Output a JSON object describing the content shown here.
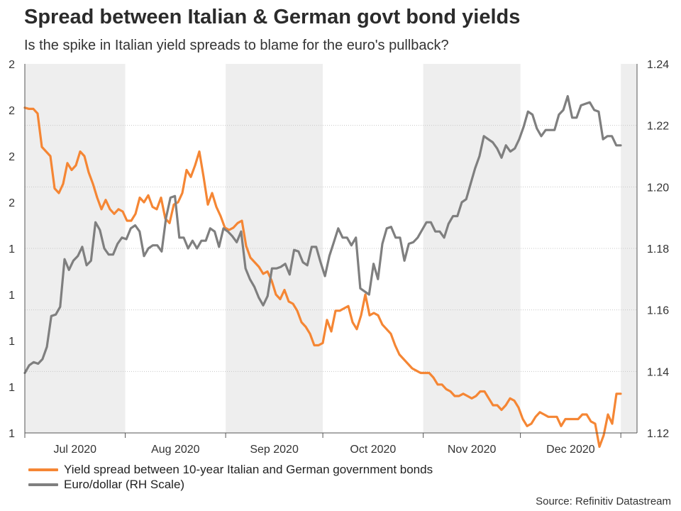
{
  "chart_data": {
    "type": "line",
    "title": "Spread between Italian & German govt bond yields",
    "subtitle": "Is the spike in Italian yield spreads to blame for the euro's pullback?",
    "source": "Source: Refinitiv Datastream",
    "x_labels": [
      "Jul 2020",
      "Aug 2020",
      "Sep 2020",
      "Oct 2020",
      "Nov 2020",
      "Dec 2020"
    ],
    "y_left_ticks": [
      "2",
      "2",
      "2",
      "2",
      "1",
      "1",
      "1",
      "1",
      "1"
    ],
    "y_left_range": [
      0.8,
      2.4
    ],
    "y_right_ticks": [
      "1.24",
      "1.22",
      "1.20",
      "1.18",
      "1.16",
      "1.14",
      "1.12"
    ],
    "y_right_range": [
      1.12,
      1.24
    ],
    "series": [
      {
        "name": "Yield spread between 10-year Italian and German government bonds",
        "axis": "left",
        "color": "#f58634",
        "values": [
          2.21,
          2.205,
          2.205,
          2.185,
          2.04,
          2.02,
          2.0,
          1.86,
          1.84,
          1.88,
          1.97,
          1.94,
          1.96,
          2.02,
          2.0,
          1.93,
          1.88,
          1.82,
          1.77,
          1.81,
          1.77,
          1.75,
          1.77,
          1.76,
          1.72,
          1.72,
          1.75,
          1.82,
          1.8,
          1.83,
          1.78,
          1.77,
          1.82,
          1.73,
          1.71,
          1.79,
          1.8,
          1.84,
          1.94,
          1.91,
          1.96,
          2.02,
          1.91,
          1.79,
          1.84,
          1.78,
          1.74,
          1.69,
          1.68,
          1.69,
          1.71,
          1.72,
          1.61,
          1.56,
          1.54,
          1.52,
          1.49,
          1.5,
          1.46,
          1.4,
          1.38,
          1.42,
          1.37,
          1.36,
          1.33,
          1.28,
          1.26,
          1.23,
          1.18,
          1.18,
          1.19,
          1.29,
          1.24,
          1.33,
          1.33,
          1.34,
          1.35,
          1.28,
          1.25,
          1.31,
          1.4,
          1.31,
          1.32,
          1.31,
          1.27,
          1.25,
          1.23,
          1.18,
          1.14,
          1.12,
          1.1,
          1.08,
          1.07,
          1.06,
          1.06,
          1.06,
          1.04,
          1.01,
          1.01,
          0.99,
          0.98,
          0.96,
          0.96,
          0.97,
          0.96,
          0.95,
          0.96,
          0.98,
          0.98,
          0.95,
          0.92,
          0.92,
          0.9,
          0.92,
          0.95,
          0.94,
          0.91,
          0.86,
          0.83,
          0.84,
          0.87,
          0.89,
          0.88,
          0.87,
          0.87,
          0.87,
          0.83,
          0.86,
          0.86,
          0.86,
          0.86,
          0.88,
          0.88,
          0.85,
          0.84,
          0.74,
          0.79,
          0.88,
          0.84,
          0.97,
          0.97
        ]
      },
      {
        "name": "Euro/dollar (RH Scale)",
        "axis": "right",
        "color": "#7f7f7f",
        "values": [
          1.1395,
          1.142,
          1.143,
          1.1425,
          1.144,
          1.148,
          1.158,
          1.1585,
          1.161,
          1.1765,
          1.173,
          1.176,
          1.1775,
          1.1805,
          1.1745,
          1.176,
          1.1885,
          1.186,
          1.18,
          1.178,
          1.178,
          1.1815,
          1.1835,
          1.183,
          1.1865,
          1.1875,
          1.1855,
          1.1775,
          1.18,
          1.181,
          1.181,
          1.179,
          1.19,
          1.1965,
          1.197,
          1.1835,
          1.1835,
          1.18,
          1.1825,
          1.18,
          1.1825,
          1.1825,
          1.1865,
          1.1855,
          1.1805,
          1.1865,
          1.1855,
          1.184,
          1.182,
          1.1855,
          1.1735,
          1.17,
          1.1675,
          1.164,
          1.1615,
          1.1645,
          1.1735,
          1.1735,
          1.174,
          1.175,
          1.1715,
          1.1795,
          1.179,
          1.1755,
          1.1745,
          1.1805,
          1.1805,
          1.1755,
          1.171,
          1.1775,
          1.182,
          1.1865,
          1.1835,
          1.1835,
          1.181,
          1.1835,
          1.167,
          1.166,
          1.165,
          1.175,
          1.17,
          1.1815,
          1.1865,
          1.187,
          1.1835,
          1.1835,
          1.176,
          1.1815,
          1.182,
          1.1835,
          1.186,
          1.1885,
          1.1885,
          1.1855,
          1.1855,
          1.1835,
          1.188,
          1.1905,
          1.1905,
          1.195,
          1.196,
          1.201,
          1.206,
          1.21,
          1.2165,
          1.2155,
          1.2145,
          1.2125,
          1.2095,
          1.2135,
          1.2115,
          1.2125,
          1.2155,
          1.2195,
          1.2245,
          1.2235,
          1.219,
          1.2165,
          1.2185,
          1.2185,
          1.2185,
          1.2235,
          1.225,
          1.2295,
          1.2225,
          1.2225,
          1.2265,
          1.227,
          1.2275,
          1.225,
          1.2245,
          1.2155,
          1.2165,
          1.2165,
          1.2135,
          1.2135
        ]
      }
    ]
  }
}
